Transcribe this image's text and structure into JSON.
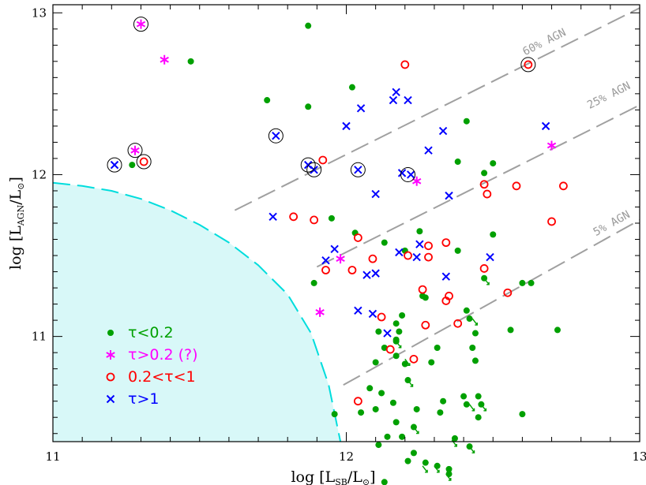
{
  "chart_data": {
    "type": "scatter",
    "xlabel": "log [L_SB/L_sun]",
    "ylabel": "log [L_AGN/L_sun]",
    "xlabel_parts": {
      "pre": "log [L",
      "sub": "SB",
      "mid": "/L",
      "sun": "⊙",
      "post": "]"
    },
    "ylabel_parts": {
      "pre": "log [L",
      "sub": "AGN",
      "mid": "/L",
      "sun": "⊙",
      "post": "]"
    },
    "xlim": [
      11,
      13
    ],
    "ylim": [
      10.35,
      13.05
    ],
    "xticks": [
      11,
      12,
      13
    ],
    "yticks": [
      11,
      12,
      13
    ],
    "xtick_labels": [
      "11",
      "12",
      "13"
    ],
    "ytick_labels": [
      "11",
      "12",
      "13"
    ],
    "grid": false,
    "legend_position": "bottom-left",
    "colors": {
      "green": "#00a000",
      "magenta": "#ff00ff",
      "red": "#ff0000",
      "blue": "#0000ff",
      "agn_lines": "#a0a0a0",
      "region_fill": "#d8f8f8",
      "region_edge": "#00dddd"
    },
    "agn_lines": [
      {
        "label": "60% AGN",
        "points": [
          [
            11.62,
            11.78
          ],
          [
            13.0,
            13.03
          ]
        ]
      },
      {
        "label": "25% AGN",
        "points": [
          [
            11.9,
            11.43
          ],
          [
            13.0,
            12.43
          ]
        ]
      },
      {
        "label": "5% AGN",
        "points": [
          [
            11.99,
            10.7
          ],
          [
            13.0,
            11.72
          ]
        ]
      }
    ],
    "shaded_region_boundary": [
      [
        11.0,
        11.95
      ],
      [
        11.1,
        11.93
      ],
      [
        11.2,
        11.9
      ],
      [
        11.3,
        11.85
      ],
      [
        11.4,
        11.78
      ],
      [
        11.5,
        11.69
      ],
      [
        11.6,
        11.58
      ],
      [
        11.7,
        11.44
      ],
      [
        11.8,
        11.26
      ],
      [
        11.88,
        11.02
      ],
      [
        11.94,
        10.7
      ],
      [
        11.98,
        10.35
      ]
    ],
    "series": [
      {
        "name": "τ<0.2",
        "marker": "dot",
        "color": "#00a000",
        "points": [
          [
            11.47,
            12.7
          ],
          [
            11.87,
            12.92
          ],
          [
            11.73,
            12.46
          ],
          [
            11.87,
            12.42
          ],
          [
            12.02,
            12.54
          ],
          [
            12.41,
            12.33
          ],
          [
            12.38,
            12.08
          ],
          [
            12.47,
            12.01
          ],
          [
            12.5,
            12.07
          ],
          [
            11.27,
            12.06
          ],
          [
            11.95,
            11.73
          ],
          [
            12.03,
            11.64
          ],
          [
            12.2,
            11.53
          ],
          [
            12.13,
            11.58
          ],
          [
            12.25,
            11.65
          ],
          [
            12.38,
            11.53
          ],
          [
            12.5,
            11.63
          ],
          [
            12.6,
            11.33
          ],
          [
            12.63,
            11.33
          ],
          [
            12.47,
            11.36
          ],
          [
            11.89,
            11.33
          ],
          [
            12.26,
            11.25
          ],
          [
            12.27,
            11.24
          ],
          [
            12.19,
            11.13
          ],
          [
            12.17,
            11.08
          ],
          [
            12.18,
            11.03
          ],
          [
            12.17,
            10.98
          ],
          [
            12.41,
            11.16
          ],
          [
            12.42,
            11.11
          ],
          [
            12.44,
            11.02
          ],
          [
            12.56,
            11.04
          ],
          [
            12.72,
            11.04
          ],
          [
            12.11,
            11.03
          ],
          [
            12.17,
            10.97
          ],
          [
            12.13,
            10.93
          ],
          [
            12.17,
            10.88
          ],
          [
            12.31,
            10.93
          ],
          [
            12.43,
            10.93
          ],
          [
            12.44,
            10.85
          ],
          [
            12.1,
            10.84
          ],
          [
            12.2,
            10.83
          ],
          [
            12.29,
            10.84
          ],
          [
            12.21,
            10.73
          ],
          [
            12.08,
            10.68
          ],
          [
            12.12,
            10.65
          ],
          [
            12.16,
            10.59
          ],
          [
            12.33,
            10.6
          ],
          [
            12.4,
            10.63
          ],
          [
            12.41,
            10.58
          ],
          [
            12.45,
            10.63
          ],
          [
            12.46,
            10.58
          ],
          [
            12.1,
            10.55
          ],
          [
            12.24,
            10.55
          ],
          [
            12.32,
            10.53
          ],
          [
            12.45,
            10.5
          ],
          [
            12.6,
            10.52
          ],
          [
            11.96,
            10.52
          ],
          [
            12.05,
            10.53
          ],
          [
            12.17,
            10.47
          ],
          [
            12.23,
            10.44
          ],
          [
            12.14,
            10.38
          ],
          [
            12.19,
            10.38
          ],
          [
            12.37,
            10.37
          ],
          [
            12.42,
            10.32
          ],
          [
            12.11,
            10.33
          ],
          [
            12.23,
            10.28
          ],
          [
            12.27,
            10.22
          ],
          [
            12.31,
            10.2
          ],
          [
            12.35,
            10.18
          ],
          [
            12.35,
            10.15
          ],
          [
            12.21,
            10.23
          ],
          [
            12.13,
            10.1
          ]
        ]
      },
      {
        "name": "τ>0.2 (?)",
        "marker": "star",
        "color": "#ff00ff",
        "points": [
          [
            11.3,
            12.93
          ],
          [
            11.38,
            12.71
          ],
          [
            11.28,
            12.15
          ],
          [
            12.24,
            11.96
          ],
          [
            12.7,
            12.18
          ],
          [
            11.98,
            11.48
          ],
          [
            11.91,
            11.15
          ]
        ]
      },
      {
        "name": "0.2<τ<1",
        "marker": "circle",
        "color": "#ff0000",
        "points": [
          [
            12.2,
            12.68
          ],
          [
            12.62,
            12.68
          ],
          [
            11.31,
            12.08
          ],
          [
            11.92,
            12.09
          ],
          [
            12.47,
            11.94
          ],
          [
            12.58,
            11.93
          ],
          [
            12.74,
            11.93
          ],
          [
            12.48,
            11.88
          ],
          [
            11.82,
            11.74
          ],
          [
            11.89,
            11.72
          ],
          [
            12.04,
            11.61
          ],
          [
            12.28,
            11.56
          ],
          [
            12.34,
            11.58
          ],
          [
            12.7,
            11.71
          ],
          [
            12.21,
            11.5
          ],
          [
            12.28,
            11.49
          ],
          [
            11.93,
            11.41
          ],
          [
            12.02,
            11.41
          ],
          [
            12.09,
            11.48
          ],
          [
            12.47,
            11.42
          ],
          [
            12.26,
            11.29
          ],
          [
            12.35,
            11.25
          ],
          [
            12.55,
            11.27
          ],
          [
            12.34,
            11.22
          ],
          [
            12.12,
            11.12
          ],
          [
            12.27,
            11.07
          ],
          [
            12.38,
            11.08
          ],
          [
            12.15,
            10.92
          ],
          [
            12.23,
            10.86
          ],
          [
            12.04,
            10.6
          ]
        ]
      },
      {
        "name": "τ>1",
        "marker": "x",
        "color": "#0000ff",
        "points": [
          [
            12.17,
            12.51
          ],
          [
            12.16,
            12.46
          ],
          [
            12.21,
            12.46
          ],
          [
            12.05,
            12.41
          ],
          [
            12.0,
            12.3
          ],
          [
            11.76,
            12.24
          ],
          [
            12.33,
            12.27
          ],
          [
            11.21,
            12.06
          ],
          [
            11.87,
            12.06
          ],
          [
            11.89,
            12.03
          ],
          [
            12.04,
            12.03
          ],
          [
            12.19,
            12.01
          ],
          [
            12.22,
            12.0
          ],
          [
            12.28,
            12.15
          ],
          [
            12.68,
            12.3
          ],
          [
            12.1,
            11.88
          ],
          [
            12.35,
            11.87
          ],
          [
            11.75,
            11.74
          ],
          [
            12.25,
            11.57
          ],
          [
            12.24,
            11.49
          ],
          [
            12.18,
            11.52
          ],
          [
            11.93,
            11.47
          ],
          [
            11.96,
            11.54
          ],
          [
            12.07,
            11.38
          ],
          [
            12.1,
            11.39
          ],
          [
            12.34,
            11.37
          ],
          [
            12.49,
            11.49
          ],
          [
            12.04,
            11.16
          ],
          [
            12.09,
            11.14
          ],
          [
            12.14,
            11.02
          ]
        ]
      }
    ],
    "highlighted_points": [
      [
        11.3,
        12.93
      ],
      [
        12.62,
        12.68
      ],
      [
        11.28,
        12.15
      ],
      [
        11.31,
        12.08
      ],
      [
        11.21,
        12.06
      ],
      [
        11.76,
        12.24
      ],
      [
        11.87,
        12.06
      ],
      [
        11.89,
        12.03
      ],
      [
        12.04,
        12.03
      ],
      [
        12.21,
        12.0
      ]
    ],
    "upper_limit_points": [
      [
        12.46,
        10.58
      ],
      [
        12.21,
        10.73
      ],
      [
        12.23,
        10.44
      ],
      [
        12.42,
        10.32
      ],
      [
        12.36,
        10.36
      ],
      [
        12.3,
        10.2
      ],
      [
        12.34,
        10.15
      ],
      [
        12.2,
        10.86
      ],
      [
        12.43,
        11.11
      ],
      [
        12.47,
        11.36
      ],
      [
        12.17,
        10.97
      ],
      [
        12.26,
        10.2
      ],
      [
        12.42,
        10.58
      ]
    ]
  }
}
